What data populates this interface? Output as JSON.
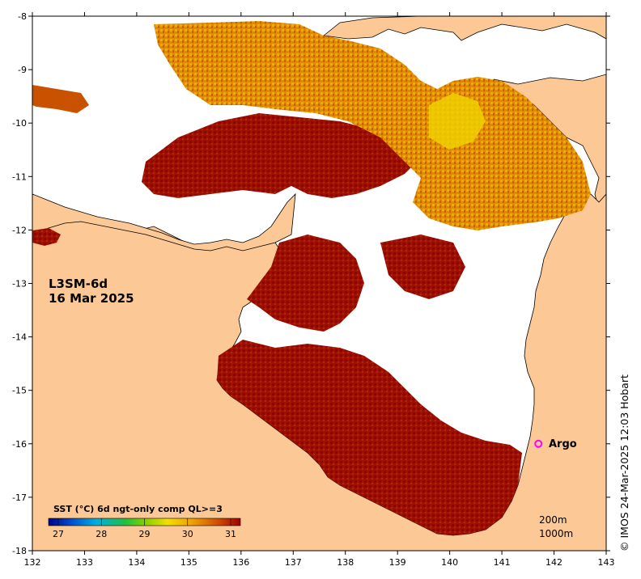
{
  "map": {
    "product": "L3SM-6d",
    "date": "16 Mar 2025",
    "land_color": "#fcc996",
    "cloud_color": "#ffffff",
    "lon_ticks": [
      "132",
      "133",
      "134",
      "135",
      "136",
      "137",
      "138",
      "139",
      "140",
      "141",
      "142",
      "143"
    ],
    "lat_ticks": [
      "-8",
      "-9",
      "-10",
      "-11",
      "-12",
      "-13",
      "-14",
      "-15",
      "-16",
      "-17",
      "-18"
    ],
    "lon_range": [
      132,
      143
    ],
    "lat_range": [
      -18,
      -8
    ],
    "argo": {
      "label": "Argo",
      "lon": 141.7,
      "lat": -16.0,
      "marker_color": "#ff00ff"
    },
    "contours": {
      "c200": "200m",
      "c1000": "1000m"
    }
  },
  "colorbar": {
    "title": "SST (°C) 6d ngt-only comp QL>=3",
    "ticks": [
      "27",
      "28",
      "29",
      "30",
      "31"
    ],
    "range": [
      27,
      31
    ],
    "colormap": [
      "#00008b",
      "#0050d0",
      "#00b0e0",
      "#20c040",
      "#80d000",
      "#f0e000",
      "#f0a000",
      "#d05000",
      "#a00000"
    ]
  },
  "credit": "© IMOS 24-Mar-2025 12:03 Hobart"
}
